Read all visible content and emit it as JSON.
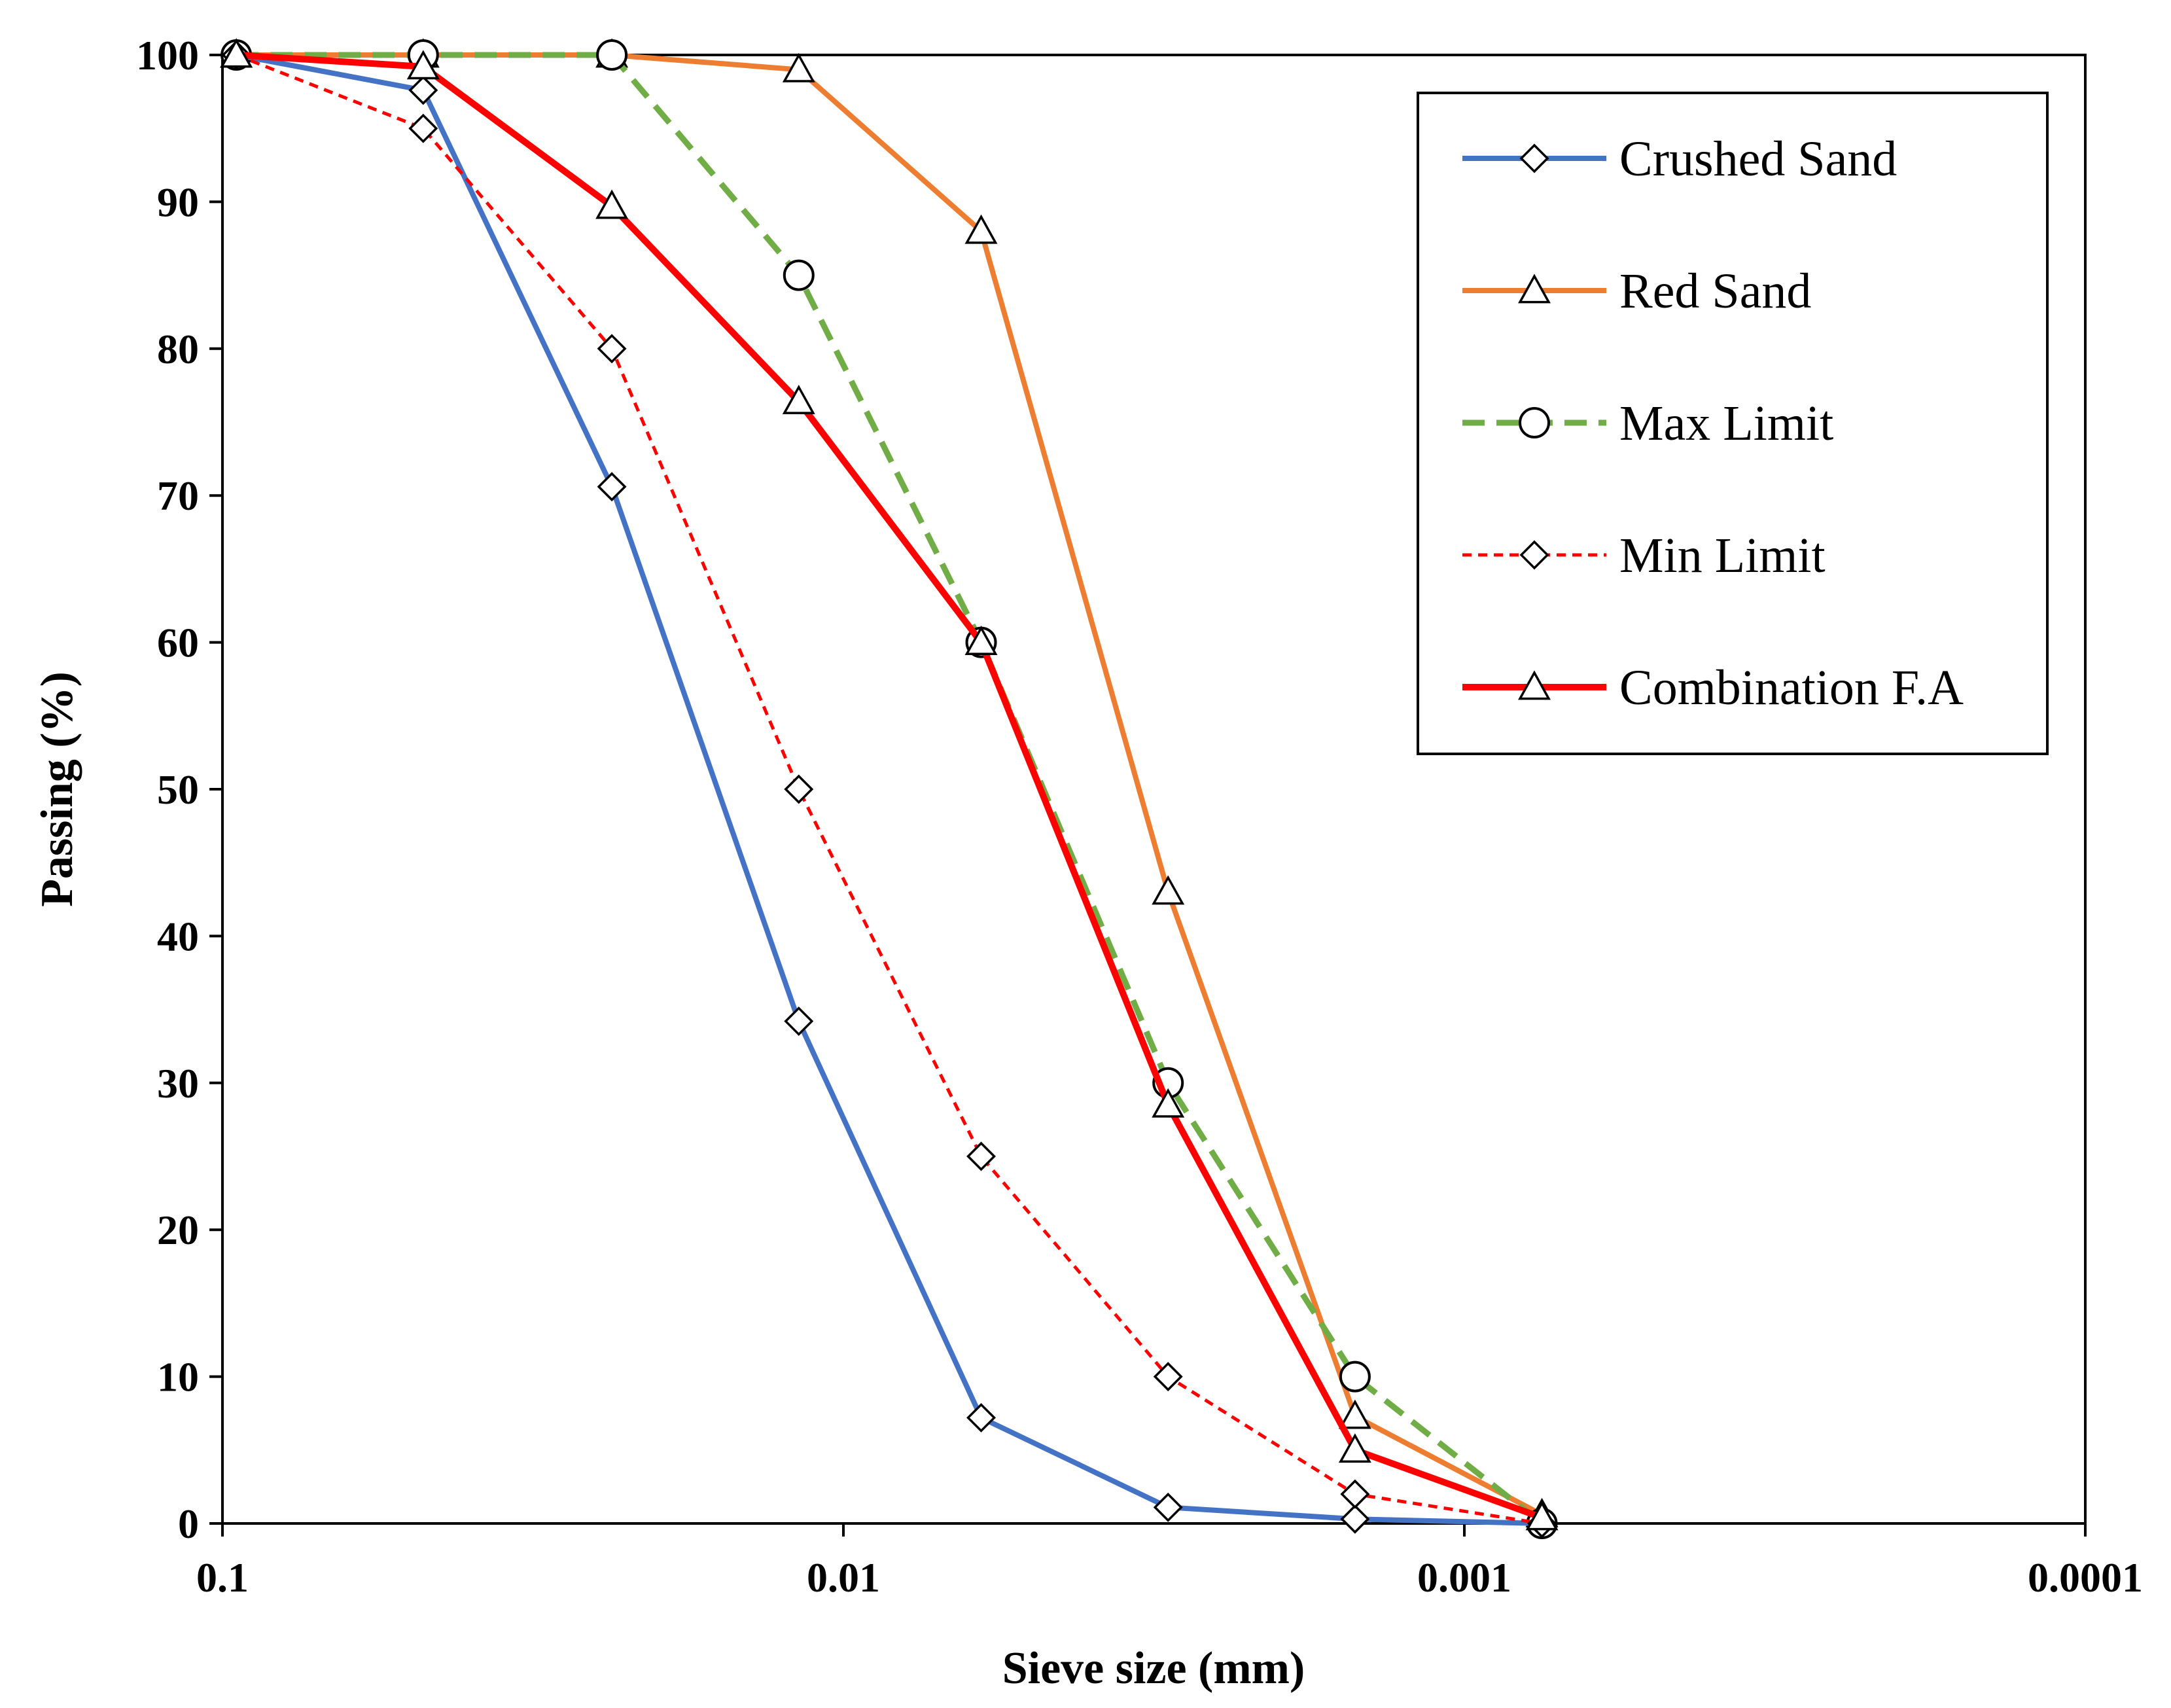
{
  "chart_data": {
    "type": "line",
    "title": "",
    "xlabel": "Sieve size (mm)",
    "ylabel": "Passing (%)",
    "x_scale": "log",
    "x_reversed": true,
    "xlim": [
      0.1,
      0.0001
    ],
    "ylim": [
      0,
      100
    ],
    "x_ticks": [
      0.1,
      0.01,
      0.001,
      0.0001
    ],
    "x_tick_labels": [
      "0.1",
      "0.01",
      "0.001",
      "0.0001"
    ],
    "y_ticks": [
      0,
      10,
      20,
      30,
      40,
      50,
      60,
      70,
      80,
      90,
      100
    ],
    "y_tick_labels": [
      "0",
      "10",
      "20",
      "30",
      "40",
      "50",
      "60",
      "70",
      "80",
      "90",
      "100"
    ],
    "grid": false,
    "legend_position": "top-right",
    "x": [
      0.095,
      0.0475,
      0.0236,
      0.0118,
      0.006,
      0.003,
      0.0015,
      0.00075
    ],
    "series": [
      {
        "name": "Crushed Sand",
        "color": "#4472C4",
        "dash": "solid",
        "marker": "diamond",
        "values": [
          100,
          97.6,
          70.6,
          34.2,
          7.2,
          1.1,
          0.3,
          0
        ]
      },
      {
        "name": "Red Sand",
        "color": "#ED7D31",
        "dash": "solid",
        "marker": "triangle",
        "values": [
          100,
          100,
          100,
          99,
          88,
          43,
          7.3,
          0.6
        ]
      },
      {
        "name": "Max Limit",
        "color": "#70AD47",
        "dash": "dashed",
        "marker": "circle",
        "values": [
          100,
          100,
          100,
          85,
          60,
          30,
          10,
          0
        ]
      },
      {
        "name": "Min Limit",
        "color": "#FF0000",
        "dash": "dotted",
        "marker": "diamond",
        "values": [
          100,
          95,
          80,
          50,
          25,
          10,
          2,
          0
        ]
      },
      {
        "name": "Combination F.A",
        "color": "#FF0000",
        "dash": "solid",
        "marker": "triangle",
        "values": [
          100,
          99.2,
          89.7,
          76.4,
          60,
          28.5,
          5,
          0.4
        ]
      }
    ]
  }
}
